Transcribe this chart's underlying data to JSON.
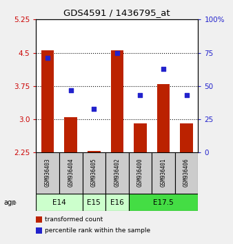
{
  "title": "GDS4591 / 1436795_at",
  "samples": [
    "GSM936403",
    "GSM936404",
    "GSM936405",
    "GSM936402",
    "GSM936400",
    "GSM936401",
    "GSM936406"
  ],
  "transformed_counts": [
    4.55,
    3.05,
    2.28,
    4.55,
    2.9,
    3.8,
    2.9
  ],
  "percentile_ranks": [
    71,
    47,
    33,
    75,
    43,
    63,
    43
  ],
  "y_min": 2.25,
  "y_max": 5.25,
  "y_ticks_left": [
    2.25,
    3.0,
    3.75,
    4.5,
    5.25
  ],
  "y_ticks_right_vals": [
    0,
    25,
    50,
    75,
    100
  ],
  "y_ticks_right_labels": [
    "0",
    "25",
    "50",
    "75",
    "100%"
  ],
  "bar_color": "#bb2200",
  "dot_color": "#2222cc",
  "bg_color": "#f0f0f0",
  "plot_bg_color": "#ffffff",
  "left_tick_color": "#cc0000",
  "right_tick_color": "#2222cc",
  "bar_bottom": 2.25,
  "grid_dotted_at": [
    3.0,
    3.75,
    4.5
  ],
  "sample_box_color": "#cccccc",
  "age_groups": [
    {
      "label": "E14",
      "start": 0,
      "end": 2,
      "color": "#ccffcc"
    },
    {
      "label": "E15",
      "start": 2,
      "end": 3,
      "color": "#ccffcc"
    },
    {
      "label": "E16",
      "start": 3,
      "end": 4,
      "color": "#ccffcc"
    },
    {
      "label": "E17.5",
      "start": 4,
      "end": 7,
      "color": "#44dd44"
    }
  ],
  "legend_items": [
    {
      "color": "#bb2200",
      "label": "transformed count"
    },
    {
      "color": "#2222cc",
      "label": "percentile rank within the sample"
    }
  ]
}
